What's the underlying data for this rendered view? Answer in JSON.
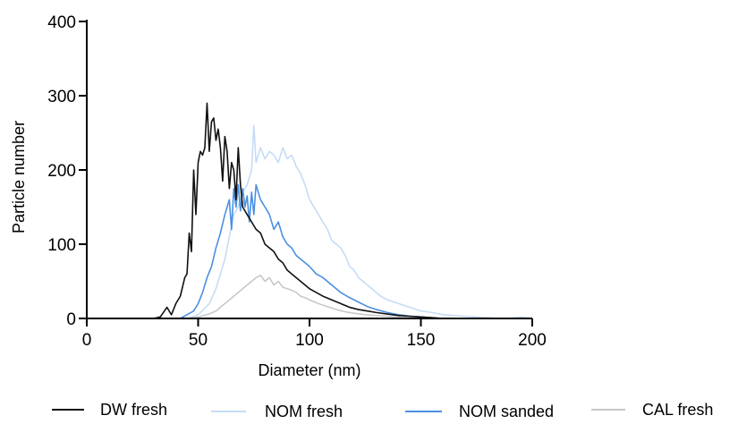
{
  "chart_data": {
    "type": "line",
    "title": "",
    "xlabel": "Diameter (nm)",
    "ylabel": "Particle number",
    "xlim": [
      0,
      200
    ],
    "ylim": [
      0,
      400
    ],
    "xticks": [
      0,
      50,
      100,
      150,
      200
    ],
    "yticks": [
      0,
      100,
      200,
      300,
      400
    ],
    "grid": false,
    "legend_position": "bottom",
    "series": [
      {
        "name": "DW fresh",
        "color": "#111111",
        "x": [
          0,
          15,
          30,
          33,
          36,
          38,
          40,
          42,
          44,
          45,
          46,
          47,
          48,
          49,
          50,
          51,
          52,
          53,
          54,
          55,
          56,
          57,
          58,
          59,
          60,
          61,
          62,
          63,
          64,
          65,
          66,
          67,
          68,
          69,
          70,
          72,
          74,
          76,
          78,
          80,
          82,
          84,
          86,
          88,
          90,
          92,
          94,
          96,
          98,
          100,
          103,
          106,
          110,
          114,
          118,
          122,
          126,
          130,
          135,
          140,
          145,
          150,
          155,
          160,
          165,
          170,
          175,
          180,
          190,
          200
        ],
        "y": [
          0,
          0,
          0,
          2,
          15,
          5,
          20,
          30,
          55,
          60,
          115,
          90,
          200,
          140,
          210,
          225,
          220,
          230,
          290,
          225,
          265,
          270,
          240,
          255,
          230,
          185,
          245,
          225,
          175,
          210,
          200,
          160,
          230,
          180,
          150,
          140,
          130,
          120,
          115,
          100,
          95,
          90,
          80,
          75,
          65,
          60,
          55,
          50,
          45,
          40,
          35,
          30,
          25,
          20,
          15,
          12,
          10,
          8,
          6,
          4,
          3,
          2,
          1,
          0,
          0,
          0,
          0,
          0,
          0,
          0
        ]
      },
      {
        "name": "NOM fresh",
        "color": "#c6dcf5",
        "x": [
          0,
          40,
          45,
          50,
          55,
          58,
          60,
          62,
          64,
          66,
          68,
          70,
          72,
          74,
          75,
          76,
          78,
          80,
          82,
          84,
          86,
          88,
          90,
          92,
          94,
          96,
          98,
          100,
          102,
          104,
          106,
          108,
          110,
          112,
          114,
          116,
          118,
          120,
          122,
          124,
          126,
          128,
          130,
          132,
          135,
          140,
          145,
          150,
          155,
          160,
          165,
          170,
          175,
          180,
          185,
          190,
          195,
          200
        ],
        "y": [
          0,
          0,
          0,
          5,
          20,
          40,
          60,
          80,
          110,
          140,
          150,
          170,
          180,
          200,
          260,
          210,
          230,
          215,
          225,
          220,
          210,
          230,
          215,
          220,
          205,
          195,
          180,
          160,
          150,
          140,
          130,
          120,
          105,
          100,
          95,
          85,
          70,
          65,
          55,
          50,
          45,
          40,
          35,
          30,
          25,
          20,
          15,
          10,
          8,
          5,
          4,
          3,
          2,
          1,
          0,
          0,
          2,
          0
        ]
      },
      {
        "name": "NOM sanded",
        "color": "#4a90e2",
        "x": [
          0,
          42,
          45,
          48,
          50,
          52,
          54,
          56,
          58,
          60,
          62,
          64,
          65,
          66,
          67,
          68,
          69,
          70,
          71,
          72,
          73,
          74,
          75,
          76,
          78,
          80,
          82,
          84,
          86,
          88,
          90,
          92,
          94,
          96,
          98,
          100,
          103,
          106,
          110,
          114,
          118,
          122,
          126,
          130,
          135,
          140,
          145,
          150,
          155,
          160,
          165,
          170,
          180,
          190,
          200
        ],
        "y": [
          0,
          0,
          5,
          10,
          20,
          35,
          55,
          70,
          95,
          115,
          140,
          160,
          120,
          175,
          150,
          180,
          145,
          175,
          150,
          165,
          130,
          170,
          140,
          180,
          160,
          150,
          140,
          120,
          130,
          110,
          100,
          95,
          85,
          80,
          75,
          70,
          60,
          55,
          45,
          35,
          28,
          22,
          16,
          12,
          8,
          5,
          3,
          2,
          1,
          0,
          0,
          0,
          0,
          0,
          0
        ]
      },
      {
        "name": "CAL fresh",
        "color": "#c8c8c8",
        "x": [
          0,
          45,
          50,
          55,
          58,
          60,
          62,
          64,
          66,
          68,
          70,
          72,
          74,
          76,
          78,
          80,
          82,
          84,
          86,
          88,
          90,
          92,
          94,
          96,
          98,
          100,
          104,
          108,
          112,
          116,
          120,
          125,
          130,
          135,
          140,
          145,
          150,
          160,
          170,
          180,
          190,
          200
        ],
        "y": [
          0,
          0,
          2,
          6,
          10,
          15,
          20,
          25,
          30,
          35,
          40,
          45,
          50,
          55,
          58,
          50,
          55,
          45,
          50,
          42,
          40,
          38,
          35,
          30,
          28,
          25,
          20,
          16,
          12,
          9,
          7,
          5,
          4,
          3,
          2,
          1,
          0,
          0,
          0,
          0,
          0,
          0
        ]
      }
    ]
  }
}
